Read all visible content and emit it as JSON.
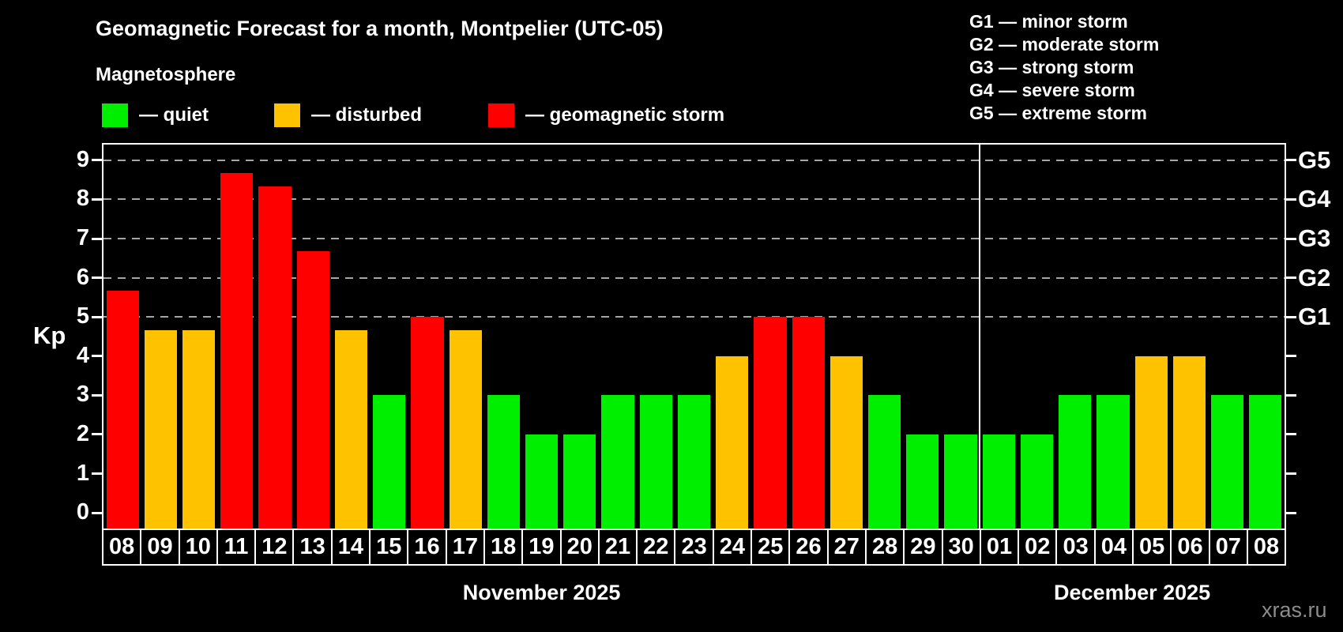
{
  "title": "Geomagnetic Forecast for a month, Montpelier (UTC-05)",
  "subtitle": "Magnetosphere",
  "axis": {
    "y_title": "Kp"
  },
  "legend": {
    "items": [
      {
        "key": "quiet",
        "label": "— quiet",
        "color": "#00ee00"
      },
      {
        "key": "disturbed",
        "label": "— disturbed",
        "color": "#ffc200"
      },
      {
        "key": "storm",
        "label": "— geomagnetic storm",
        "color": "#ff0000"
      }
    ]
  },
  "g_scale": [
    "G1 — minor storm",
    "G2 — moderate storm",
    "G3 — strong storm",
    "G4 — severe storm",
    "G5 — extreme storm"
  ],
  "watermark": "xras.ru",
  "chart_data": {
    "type": "bar",
    "title": "Geomagnetic Forecast for a month, Montpelier (UTC-05)",
    "ylabel": "Kp",
    "ylim": [
      -0.4,
      9.4
    ],
    "y_ticks": [
      0,
      1,
      2,
      3,
      4,
      5,
      6,
      7,
      8,
      9
    ],
    "gridlines_at": [
      5,
      6,
      7,
      8,
      9
    ],
    "grid_color": "#a6a6a6",
    "right_axis_labels": [
      {
        "kp": 5,
        "label": "G1"
      },
      {
        "kp": 6,
        "label": "G2"
      },
      {
        "kp": 7,
        "label": "G3"
      },
      {
        "kp": 8,
        "label": "G4"
      },
      {
        "kp": 9,
        "label": "G5"
      }
    ],
    "months": [
      {
        "name": "November 2025",
        "days": 23
      },
      {
        "name": "December 2025",
        "days": 8
      }
    ],
    "categories": [
      "08",
      "09",
      "10",
      "11",
      "12",
      "13",
      "14",
      "15",
      "16",
      "17",
      "18",
      "19",
      "20",
      "21",
      "22",
      "23",
      "24",
      "25",
      "26",
      "27",
      "28",
      "29",
      "30",
      "01",
      "02",
      "03",
      "04",
      "05",
      "06",
      "07",
      "08"
    ],
    "values": [
      5.67,
      4.67,
      4.67,
      8.67,
      8.33,
      6.67,
      4.67,
      3,
      5,
      4.67,
      3,
      2,
      2,
      3,
      3,
      3,
      4,
      5,
      5,
      4,
      3,
      2,
      2,
      2,
      2,
      3,
      3,
      4,
      4,
      3,
      3
    ],
    "status": [
      "storm",
      "disturbed",
      "disturbed",
      "storm",
      "storm",
      "storm",
      "disturbed",
      "quiet",
      "storm",
      "disturbed",
      "quiet",
      "quiet",
      "quiet",
      "quiet",
      "quiet",
      "quiet",
      "disturbed",
      "storm",
      "storm",
      "disturbed",
      "quiet",
      "quiet",
      "quiet",
      "quiet",
      "quiet",
      "quiet",
      "quiet",
      "disturbed",
      "disturbed",
      "quiet",
      "quiet"
    ],
    "colors": {
      "quiet": "#00ee00",
      "disturbed": "#ffc200",
      "storm": "#ff0000"
    }
  }
}
